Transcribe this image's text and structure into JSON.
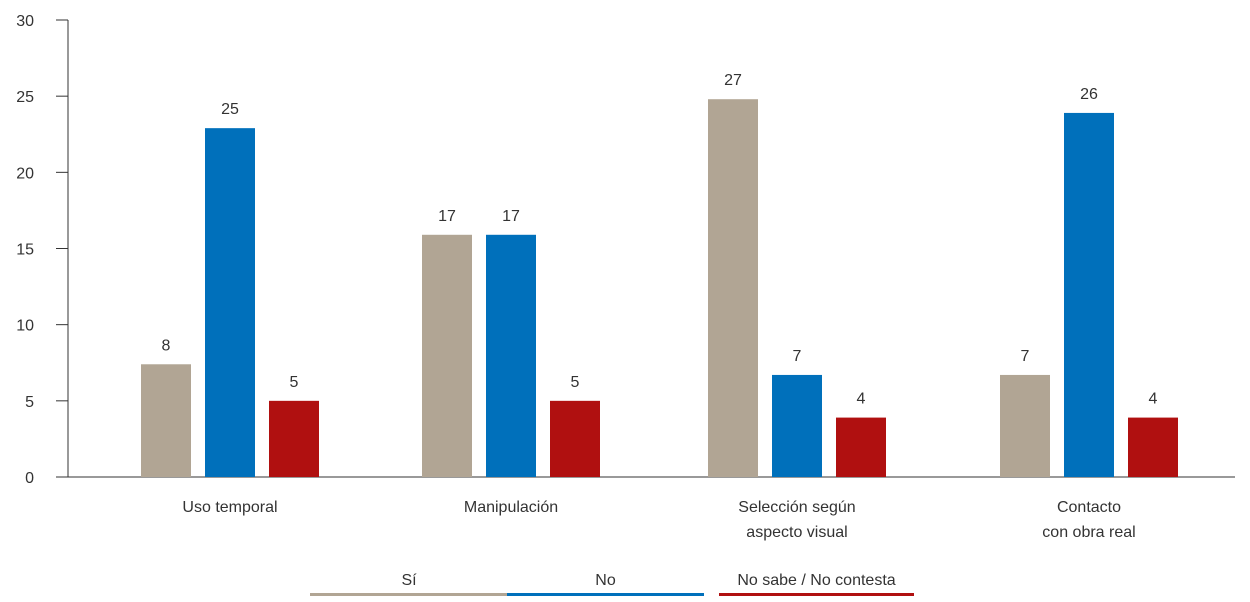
{
  "chart_data": {
    "type": "bar",
    "categories": [
      [
        "Uso temporal"
      ],
      [
        "Manipulación"
      ],
      [
        "Selección según",
        "aspecto visual"
      ],
      [
        "Contacto",
        "con obra real"
      ]
    ],
    "series": [
      {
        "name": "Sí",
        "color": "#b1a594",
        "values": [
          8,
          17,
          27,
          7
        ],
        "heights": [
          7.4,
          15.9,
          24.8,
          6.7
        ]
      },
      {
        "name": "No",
        "color": "#0070bb",
        "values": [
          25,
          17,
          7,
          26
        ],
        "heights": [
          22.9,
          15.9,
          6.7,
          23.9
        ]
      },
      {
        "name": "No sabe / No contesta",
        "color": "#b01010",
        "values": [
          5,
          5,
          4,
          4
        ],
        "heights": [
          5,
          5,
          3.9,
          3.9
        ]
      }
    ],
    "ylim": [
      0,
      30
    ],
    "yticks": [
      0,
      5,
      10,
      15,
      20,
      25,
      30
    ],
    "grid": false,
    "legend_position": "bottom-center",
    "title": "",
    "xlabel": "",
    "ylabel": ""
  }
}
